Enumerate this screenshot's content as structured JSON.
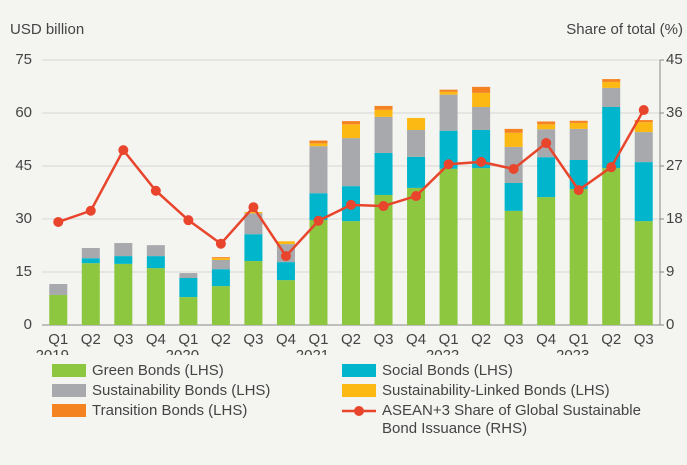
{
  "chart_data": {
    "type": "bar",
    "y_label": "USD billion",
    "y2_label": "Share of total (%)",
    "categories": [
      "Q1\n2019",
      "Q2",
      "Q3",
      "Q4",
      "Q1\n2020",
      "Q2",
      "Q3",
      "Q4",
      "Q1\n2021",
      "Q2",
      "Q3",
      "Q4",
      "Q1\n2022",
      "Q2",
      "Q3",
      "Q4",
      "Q1\n2023",
      "Q2",
      "Q3"
    ],
    "ylim": [
      0,
      75
    ],
    "yticks": [
      0,
      15,
      30,
      45,
      60,
      75
    ],
    "y2lim": [
      0,
      45
    ],
    "y2ticks": [
      0,
      9,
      18,
      27,
      36,
      45
    ],
    "grid": true,
    "series": [
      {
        "name": "Green Bonds (LHS)",
        "color": "#8dc63f",
        "type": "bar",
        "values": [
          8.5,
          17.5,
          17.3,
          16.1,
          7.9,
          11.0,
          18.1,
          12.7,
          29.7,
          29.4,
          36.8,
          38.8,
          44.2,
          44.4,
          32.3,
          36.2,
          38.5,
          44.4,
          29.4
        ]
      },
      {
        "name": "Social Bonds (LHS)",
        "color": "#00b5cc",
        "type": "bar",
        "values": [
          0,
          1.4,
          2.2,
          3.4,
          5.4,
          4.8,
          7.6,
          5.1,
          7.6,
          9.9,
          11.9,
          8.8,
          10.8,
          10.8,
          7.9,
          11.3,
          8.2,
          17.3,
          16.7
        ]
      },
      {
        "name": "Sustainability Bonds (LHS)",
        "color": "#a7a9ac",
        "type": "bar",
        "values": [
          3.1,
          2.9,
          3.7,
          3.1,
          1.4,
          2.6,
          5.9,
          5.1,
          13.3,
          13.6,
          10.2,
          7.6,
          10.2,
          6.5,
          10.2,
          7.9,
          8.8,
          5.4,
          8.5
        ]
      },
      {
        "name": "Sustainability-Linked Bonds (LHS)",
        "color": "#fdb913",
        "type": "bar",
        "values": [
          0,
          0,
          0,
          0,
          0,
          0.5,
          0.4,
          0.8,
          0.8,
          3.9,
          2.0,
          3.4,
          0.8,
          4.0,
          4.0,
          1.4,
          1.7,
          1.7,
          2.8
        ]
      },
      {
        "name": "Transition Bonds (LHS)",
        "color": "#f58220",
        "type": "bar",
        "values": [
          0,
          0,
          0,
          0,
          0,
          0.3,
          0,
          0,
          0.8,
          0.9,
          1.1,
          0,
          0.6,
          1.7,
          1.1,
          0.8,
          0.6,
          0.8,
          0.6
        ]
      },
      {
        "name": "ASEAN+3 Share of Global Sustainable Bond Issuance (RHS)",
        "color": "#e8452c",
        "type": "line",
        "axis": "y2",
        "values": [
          17.5,
          19.4,
          29.7,
          22.8,
          17.8,
          13.8,
          20.0,
          11.7,
          17.7,
          20.4,
          20.2,
          21.9,
          27.3,
          27.7,
          26.5,
          30.9,
          22.9,
          26.8,
          36.5
        ]
      }
    ]
  }
}
